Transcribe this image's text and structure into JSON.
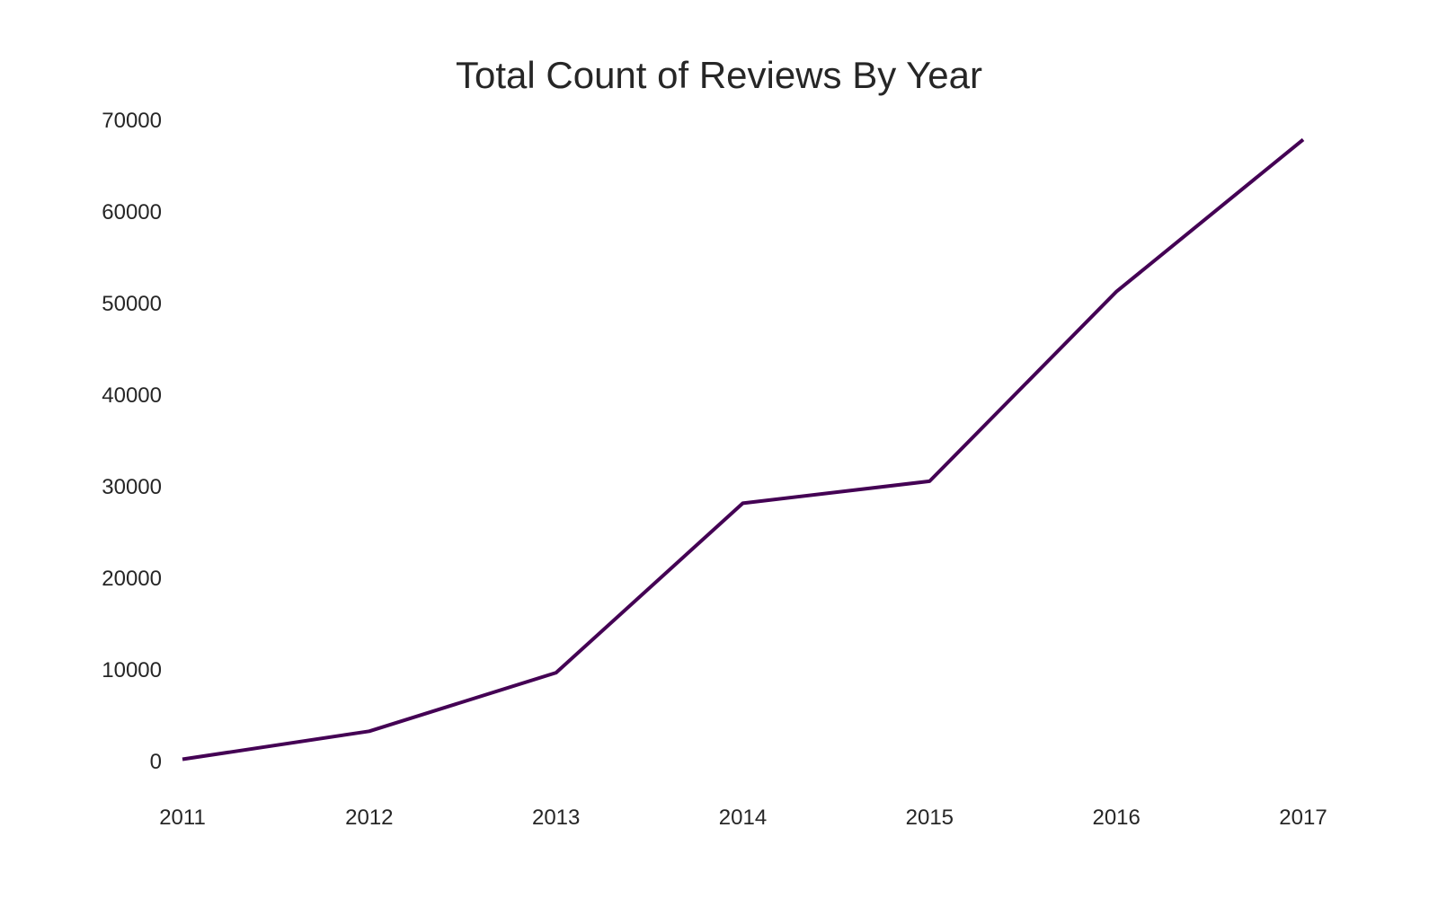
{
  "chart_data": {
    "type": "line",
    "title": "Total Count of Reviews By Year",
    "xlabel": "",
    "ylabel": "",
    "x": [
      "2011",
      "2012",
      "2013",
      "2014",
      "2015",
      "2016",
      "2017"
    ],
    "series": [
      {
        "values": [
          250,
          3300,
          9700,
          28200,
          30600,
          51300,
          67900
        ]
      }
    ],
    "ylim": [
      0,
      70000
    ],
    "yticks": [
      "0",
      "10000",
      "20000",
      "30000",
      "40000",
      "50000",
      "60000",
      "70000"
    ],
    "grid": false,
    "colors": {
      "line": "#440154"
    }
  }
}
